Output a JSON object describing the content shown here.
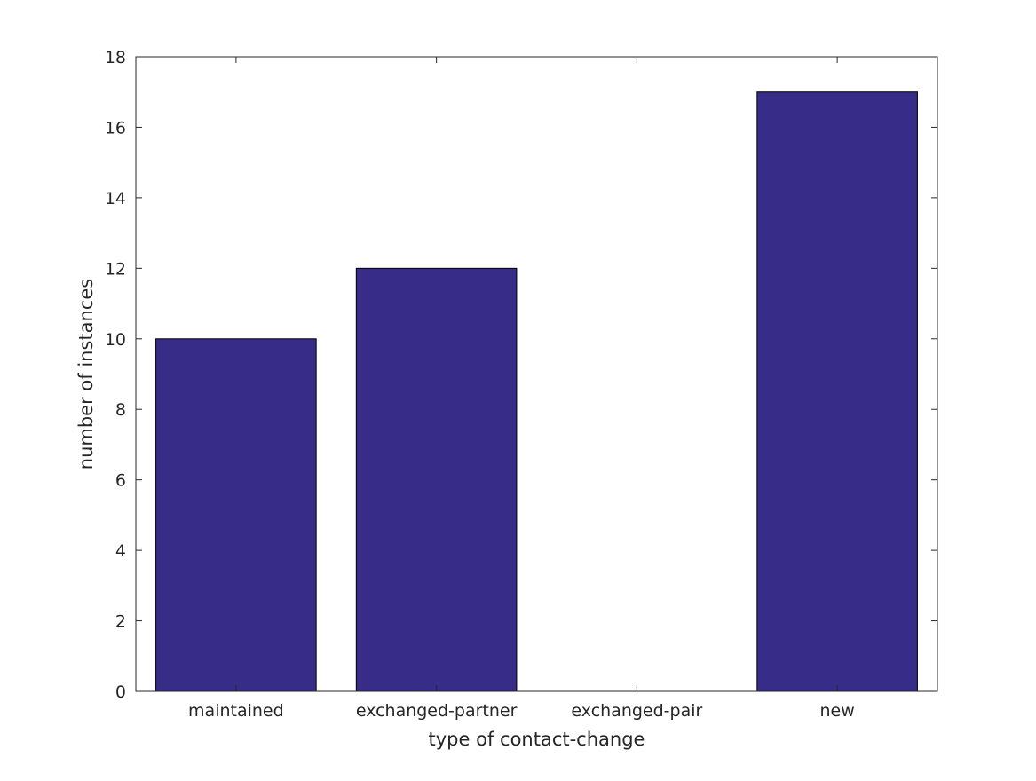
{
  "chart_data": {
    "type": "bar",
    "title": "",
    "xlabel": "type of contact-change",
    "ylabel": "number of instances",
    "categories": [
      "maintained",
      "exchanged-partner",
      "exchanged-pair",
      "new"
    ],
    "values": [
      10,
      12,
      0,
      17
    ],
    "ylim": [
      0,
      18
    ],
    "yticks": [
      0,
      2,
      4,
      6,
      8,
      10,
      12,
      14,
      16,
      18
    ],
    "grid": false,
    "legend": "none",
    "bar_color": "#372c87",
    "axis_color": "#262626"
  }
}
